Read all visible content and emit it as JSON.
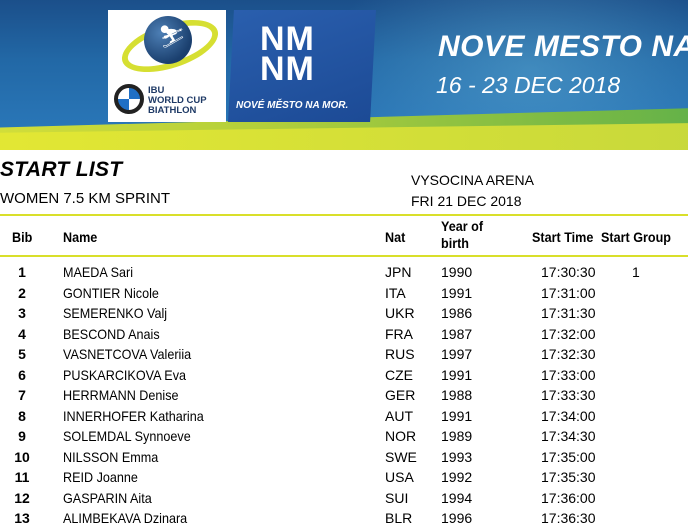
{
  "banner": {
    "event_title": "NOVE MESTO NA MOR",
    "event_dates": "16 - 23 DEC 2018",
    "ibu_logo_lines": [
      "IBU",
      "WORLD CUP",
      "BIATHLON"
    ],
    "city_logo_text": [
      "NM",
      "NM"
    ],
    "city_logo_caption": "NOVÉ MĚSTO NA MOR."
  },
  "header": {
    "doc_title": "START LIST",
    "event_name": "WOMEN 7.5 KM SPRINT",
    "venue": "VYSOCINA ARENA",
    "date": "FRI 21 DEC 2018"
  },
  "table": {
    "columns": {
      "bib": "Bib",
      "name": "Name",
      "nat": "Nat",
      "year_line1": "Year of",
      "year_line2": "birth",
      "start_time": "Start Time",
      "start_group": "Start Group"
    },
    "rows": [
      {
        "bib": "1",
        "name": "MAEDA Sari",
        "nat": "JPN",
        "year": "1990",
        "time": "17:30:30",
        "group": "1"
      },
      {
        "bib": "2",
        "name": "GONTIER Nicole",
        "nat": "ITA",
        "year": "1991",
        "time": "17:31:00",
        "group": ""
      },
      {
        "bib": "3",
        "name": "SEMERENKO Valj",
        "nat": "UKR",
        "year": "1986",
        "time": "17:31:30",
        "group": ""
      },
      {
        "bib": "4",
        "name": "BESCOND Anais",
        "nat": "FRA",
        "year": "1987",
        "time": "17:32:00",
        "group": ""
      },
      {
        "bib": "5",
        "name": "VASNETCOVA Valeriia",
        "nat": "RUS",
        "year": "1997",
        "time": "17:32:30",
        "group": ""
      },
      {
        "bib": "6",
        "name": "PUSKARCIKOVA Eva",
        "nat": "CZE",
        "year": "1991",
        "time": "17:33:00",
        "group": ""
      },
      {
        "bib": "7",
        "name": "HERRMANN Denise",
        "nat": "GER",
        "year": "1988",
        "time": "17:33:30",
        "group": ""
      },
      {
        "bib": "8",
        "name": "INNERHOFER Katharina",
        "nat": "AUT",
        "year": "1991",
        "time": "17:34:00",
        "group": ""
      },
      {
        "bib": "9",
        "name": "SOLEMDAL Synnoeve",
        "nat": "NOR",
        "year": "1989",
        "time": "17:34:30",
        "group": ""
      },
      {
        "bib": "10",
        "name": "NILSSON Emma",
        "nat": "SWE",
        "year": "1993",
        "time": "17:35:00",
        "group": ""
      },
      {
        "bib": "11",
        "name": "REID Joanne",
        "nat": "USA",
        "year": "1992",
        "time": "17:35:30",
        "group": ""
      },
      {
        "bib": "12",
        "name": "GASPARIN Aita",
        "nat": "SUI",
        "year": "1994",
        "time": "17:36:00",
        "group": ""
      },
      {
        "bib": "13",
        "name": "ALIMBEKAVA Dzinara",
        "nat": "BLR",
        "year": "1996",
        "time": "17:36:30",
        "group": ""
      }
    ]
  },
  "colors": {
    "banner_blue": "#1b4f8a",
    "accent_lime": "#d9df2a",
    "city_logo_blue": "#1c4a95"
  },
  "icons": [
    "globe-skier-icon",
    "bmw-roundel-icon"
  ]
}
